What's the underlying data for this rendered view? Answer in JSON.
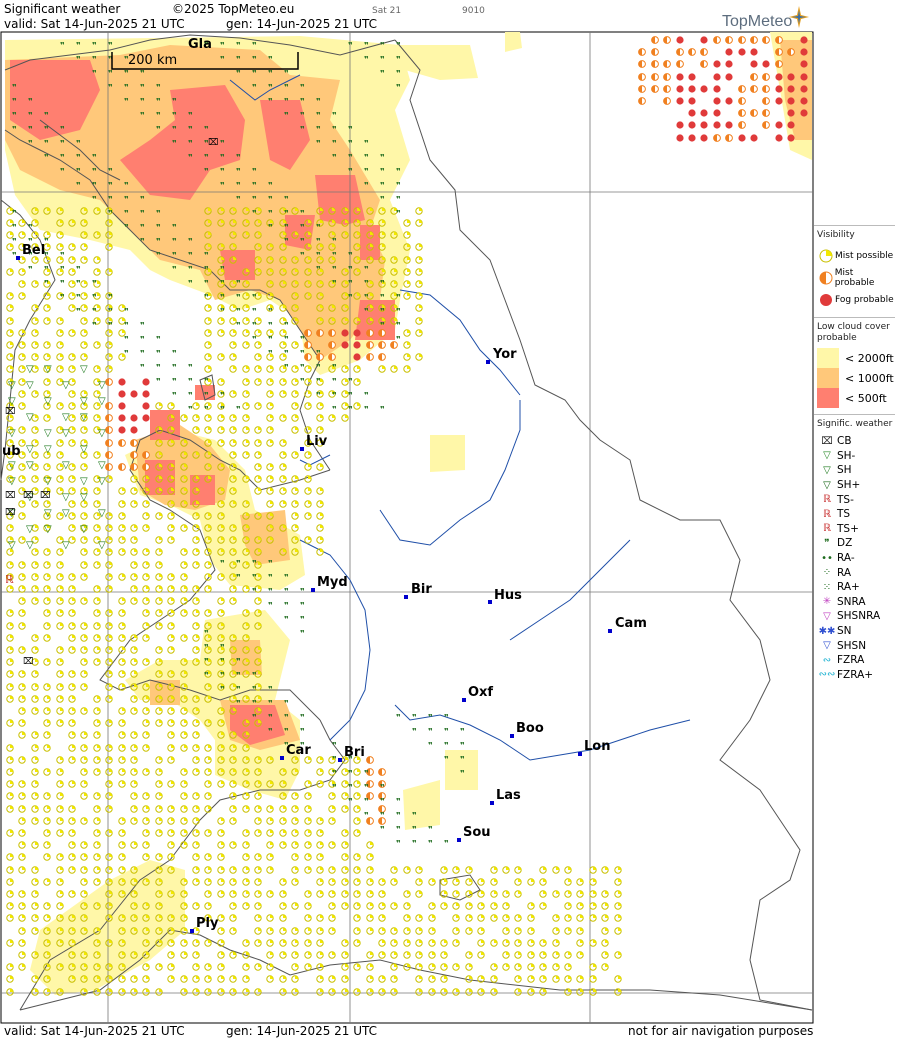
{
  "header": {
    "title": "Significant weather",
    "copyright": "©2025 TopMeteo.eu",
    "valid": "valid:  Sat  14-Jun-2025  21 UTC",
    "gen": "gen: 14-Jun-2025 21 UTC",
    "day_tag": "Sat 21",
    "code": "9010",
    "brand": "TopMeteo"
  },
  "footer": {
    "valid": "valid:  Sat  14-Jun-2025  21 UTC",
    "gen": "gen: 14-Jun-2025 21 UTC",
    "disclaimer": "not for air navigation purposes"
  },
  "scale": {
    "label": "200 km"
  },
  "cities": [
    {
      "name": "Gla"
    },
    {
      "name": "Bel"
    },
    {
      "name": "Yor"
    },
    {
      "name": "Liv"
    },
    {
      "name": "ub"
    },
    {
      "name": "Myd"
    },
    {
      "name": "Bir"
    },
    {
      "name": "Hus"
    },
    {
      "name": "Cam"
    },
    {
      "name": "Oxf"
    },
    {
      "name": "Boo"
    },
    {
      "name": "Lon"
    },
    {
      "name": "Car"
    },
    {
      "name": "Bri"
    },
    {
      "name": "Las"
    },
    {
      "name": "Sou"
    },
    {
      "name": "Ply"
    }
  ],
  "legend": {
    "visibility": {
      "title": "Visibility",
      "items": [
        {
          "label": "Mist possible",
          "color": "#f2e800"
        },
        {
          "label": "Mist probable",
          "color": "#f08020"
        },
        {
          "label": "Fog probable",
          "color": "#e03a3a"
        }
      ]
    },
    "low_cloud": {
      "title": "Low cloud cover probable",
      "bands": [
        {
          "label": "< 2000ft",
          "color": "#fff7a8"
        },
        {
          "label": "< 1000ft",
          "color": "#ffc87a"
        },
        {
          "label": "<   500ft",
          "color": "#ff7f70"
        }
      ]
    },
    "weather": {
      "title": "Signific. weather",
      "items": [
        {
          "label": "CB",
          "symbol": "⌧",
          "color": "#222"
        },
        {
          "label": "SH-",
          "symbol": "▽",
          "color": "#2a8a2a"
        },
        {
          "label": "SH",
          "symbol": "▽",
          "color": "#1e7a1e"
        },
        {
          "label": "SH+",
          "symbol": "▽",
          "color": "#156615"
        },
        {
          "label": "TS-",
          "symbol": "ℝ",
          "color": "#c62828"
        },
        {
          "label": "TS",
          "symbol": "ℝ",
          "color": "#c62828"
        },
        {
          "label": "TS+",
          "symbol": "ℝ",
          "color": "#c62828"
        },
        {
          "label": "DZ",
          "symbol": "❞",
          "color": "#1e6b1e"
        },
        {
          "label": "RA-",
          "symbol": "••",
          "color": "#1e6b1e"
        },
        {
          "label": "RA",
          "symbol": "⁘",
          "color": "#1e6b1e"
        },
        {
          "label": "RA+",
          "symbol": "⁙",
          "color": "#1e6b1e"
        },
        {
          "label": "SNRA",
          "symbol": "✳",
          "color": "#c040c0"
        },
        {
          "label": "SHSNRA",
          "symbol": "▽",
          "color": "#c040c0"
        },
        {
          "label": "SN",
          "symbol": "✱✱",
          "color": "#3050d0"
        },
        {
          "label": "SHSN",
          "symbol": "▽",
          "color": "#3050d0"
        },
        {
          "label": "FZRA",
          "symbol": "∾",
          "color": "#18b0d0"
        },
        {
          "label": "FZRA+",
          "symbol": "∾∾",
          "color": "#18b0d0"
        }
      ]
    }
  },
  "colors": {
    "mist_possible": "#f2e800",
    "mist_probable": "#f08020",
    "fog_probable": "#e03a3a",
    "cloud_2000": "#fff7a8",
    "cloud_1000": "#ffc87a",
    "cloud_500": "#ff7f70",
    "drizzle": "#1e6b1e",
    "coast": "#555555",
    "river": "#1f4fa8",
    "grid": "#777777",
    "city_marker": "#0000cc"
  }
}
